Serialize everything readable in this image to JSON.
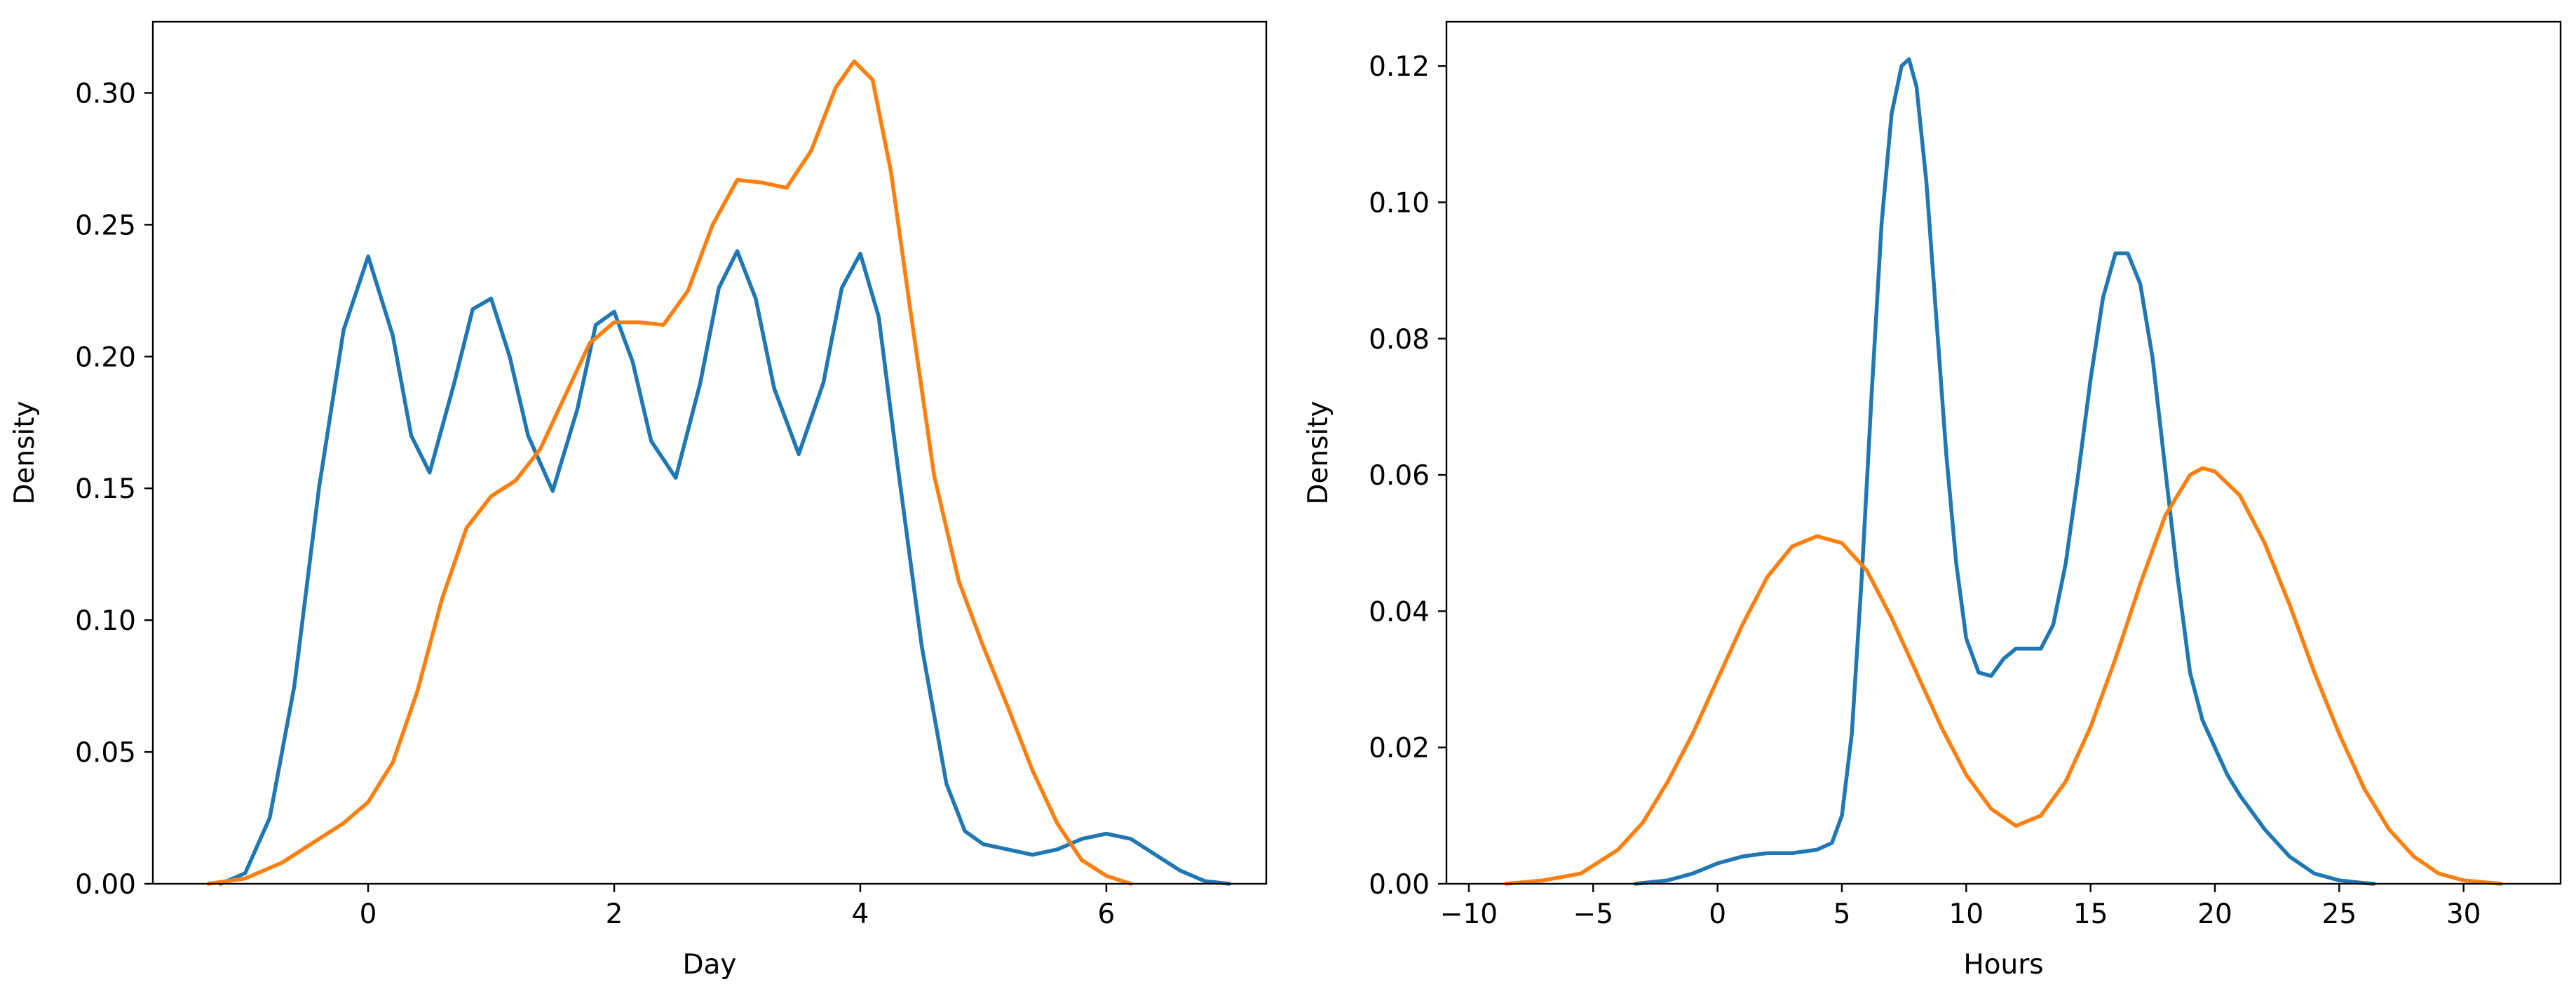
{
  "chart_data": [
    {
      "type": "line",
      "xlabel": "Day",
      "ylabel": "Density",
      "xlim": [
        -1.75,
        7.3
      ],
      "ylim": [
        0,
        0.327
      ],
      "xticks": [
        0,
        2,
        4,
        6
      ],
      "xtick_labels": [
        "0",
        "2",
        "4",
        "6"
      ],
      "yticks": [
        0,
        0.05,
        0.1,
        0.15,
        0.2,
        0.25,
        0.3
      ],
      "ytick_labels": [
        "0.00",
        "0.05",
        "0.10",
        "0.15",
        "0.20",
        "0.25",
        "0.30"
      ],
      "grid": false,
      "series": [
        {
          "color": "#1f77b4",
          "x": [
            -1.2,
            -1.0,
            -0.8,
            -0.6,
            -0.4,
            -0.2,
            0.0,
            0.2,
            0.35,
            0.5,
            0.7,
            0.85,
            1.0,
            1.15,
            1.3,
            1.5,
            1.7,
            1.85,
            2.0,
            2.15,
            2.3,
            2.5,
            2.7,
            2.85,
            3.0,
            3.15,
            3.3,
            3.5,
            3.7,
            3.85,
            4.0,
            4.15,
            4.3,
            4.5,
            4.7,
            4.85,
            5.0,
            5.2,
            5.4,
            5.6,
            5.8,
            6.0,
            6.2,
            6.4,
            6.6,
            6.8,
            7.0
          ],
          "y": [
            0.0,
            0.004,
            0.025,
            0.075,
            0.15,
            0.21,
            0.238,
            0.208,
            0.17,
            0.156,
            0.19,
            0.218,
            0.222,
            0.2,
            0.17,
            0.149,
            0.18,
            0.212,
            0.217,
            0.198,
            0.168,
            0.154,
            0.19,
            0.226,
            0.24,
            0.222,
            0.188,
            0.163,
            0.19,
            0.226,
            0.239,
            0.215,
            0.16,
            0.09,
            0.038,
            0.02,
            0.015,
            0.013,
            0.011,
            0.013,
            0.017,
            0.019,
            0.017,
            0.011,
            0.005,
            0.001,
            0.0
          ]
        },
        {
          "color": "#ff7f0e",
          "x": [
            -1.3,
            -1.0,
            -0.7,
            -0.4,
            -0.2,
            0.0,
            0.2,
            0.4,
            0.6,
            0.8,
            1.0,
            1.2,
            1.4,
            1.6,
            1.8,
            2.0,
            2.2,
            2.4,
            2.6,
            2.8,
            3.0,
            3.2,
            3.4,
            3.6,
            3.8,
            3.95,
            4.1,
            4.25,
            4.4,
            4.6,
            4.8,
            5.0,
            5.2,
            5.4,
            5.6,
            5.8,
            6.0,
            6.2
          ],
          "y": [
            0.0,
            0.002,
            0.008,
            0.017,
            0.023,
            0.031,
            0.046,
            0.073,
            0.108,
            0.135,
            0.147,
            0.153,
            0.165,
            0.185,
            0.205,
            0.213,
            0.213,
            0.212,
            0.225,
            0.25,
            0.267,
            0.266,
            0.264,
            0.278,
            0.302,
            0.312,
            0.305,
            0.27,
            0.22,
            0.155,
            0.115,
            0.09,
            0.067,
            0.043,
            0.023,
            0.009,
            0.003,
            0.0
          ]
        }
      ]
    },
    {
      "type": "line",
      "xlabel": "Hours",
      "ylabel": "Density",
      "xlim": [
        -10.9,
        33.9
      ],
      "ylim": [
        0,
        0.1265
      ],
      "xticks": [
        -10,
        -5,
        0,
        5,
        10,
        15,
        20,
        25,
        30
      ],
      "xtick_labels": [
        "−10",
        "−5",
        "0",
        "5",
        "10",
        "15",
        "20",
        "25",
        "30"
      ],
      "yticks": [
        0,
        0.02,
        0.04,
        0.06,
        0.08,
        0.1,
        0.12
      ],
      "ytick_labels": [
        "0.00",
        "0.02",
        "0.04",
        "0.06",
        "0.08",
        "0.10",
        "0.12"
      ],
      "grid": false,
      "series": [
        {
          "color": "#1f77b4",
          "x": [
            -3.3,
            -2.0,
            -1.0,
            0.0,
            1.0,
            2.0,
            3.0,
            4.0,
            4.6,
            5.0,
            5.4,
            5.8,
            6.2,
            6.6,
            7.0,
            7.4,
            7.7,
            8.0,
            8.4,
            8.8,
            9.2,
            9.6,
            10.0,
            10.5,
            11.0,
            11.5,
            12.0,
            12.5,
            13.0,
            13.5,
            14.0,
            14.5,
            15.0,
            15.5,
            16.0,
            16.5,
            17.0,
            17.5,
            18.0,
            18.5,
            19.0,
            19.5,
            20.0,
            20.5,
            21.0,
            22.0,
            23.0,
            24.0,
            25.0,
            26.0,
            26.4
          ],
          "y": [
            0.0,
            0.0005,
            0.0015,
            0.003,
            0.004,
            0.0045,
            0.0045,
            0.005,
            0.006,
            0.01,
            0.022,
            0.045,
            0.072,
            0.097,
            0.113,
            0.12,
            0.121,
            0.117,
            0.103,
            0.083,
            0.063,
            0.047,
            0.036,
            0.031,
            0.0305,
            0.033,
            0.0345,
            0.0345,
            0.0345,
            0.038,
            0.047,
            0.06,
            0.074,
            0.086,
            0.0925,
            0.0925,
            0.088,
            0.077,
            0.061,
            0.045,
            0.031,
            0.024,
            0.02,
            0.016,
            0.013,
            0.008,
            0.004,
            0.0015,
            0.0005,
            0.0001,
            0.0
          ]
        },
        {
          "color": "#ff7f0e",
          "x": [
            -8.5,
            -7.0,
            -5.5,
            -4.0,
            -3.0,
            -2.0,
            -1.0,
            0.0,
            1.0,
            2.0,
            3.0,
            4.0,
            5.0,
            6.0,
            7.0,
            8.0,
            9.0,
            10.0,
            11.0,
            12.0,
            13.0,
            14.0,
            15.0,
            16.0,
            17.0,
            18.0,
            19.0,
            19.5,
            20.0,
            21.0,
            22.0,
            23.0,
            24.0,
            25.0,
            26.0,
            27.0,
            28.0,
            29.0,
            30.0,
            31.5
          ],
          "y": [
            0.0,
            0.0005,
            0.0015,
            0.005,
            0.009,
            0.015,
            0.022,
            0.03,
            0.038,
            0.045,
            0.0495,
            0.051,
            0.05,
            0.046,
            0.039,
            0.031,
            0.023,
            0.016,
            0.011,
            0.0085,
            0.01,
            0.015,
            0.023,
            0.033,
            0.044,
            0.054,
            0.06,
            0.061,
            0.0605,
            0.057,
            0.05,
            0.041,
            0.031,
            0.022,
            0.014,
            0.008,
            0.004,
            0.0015,
            0.0005,
            0.0
          ]
        }
      ]
    }
  ]
}
